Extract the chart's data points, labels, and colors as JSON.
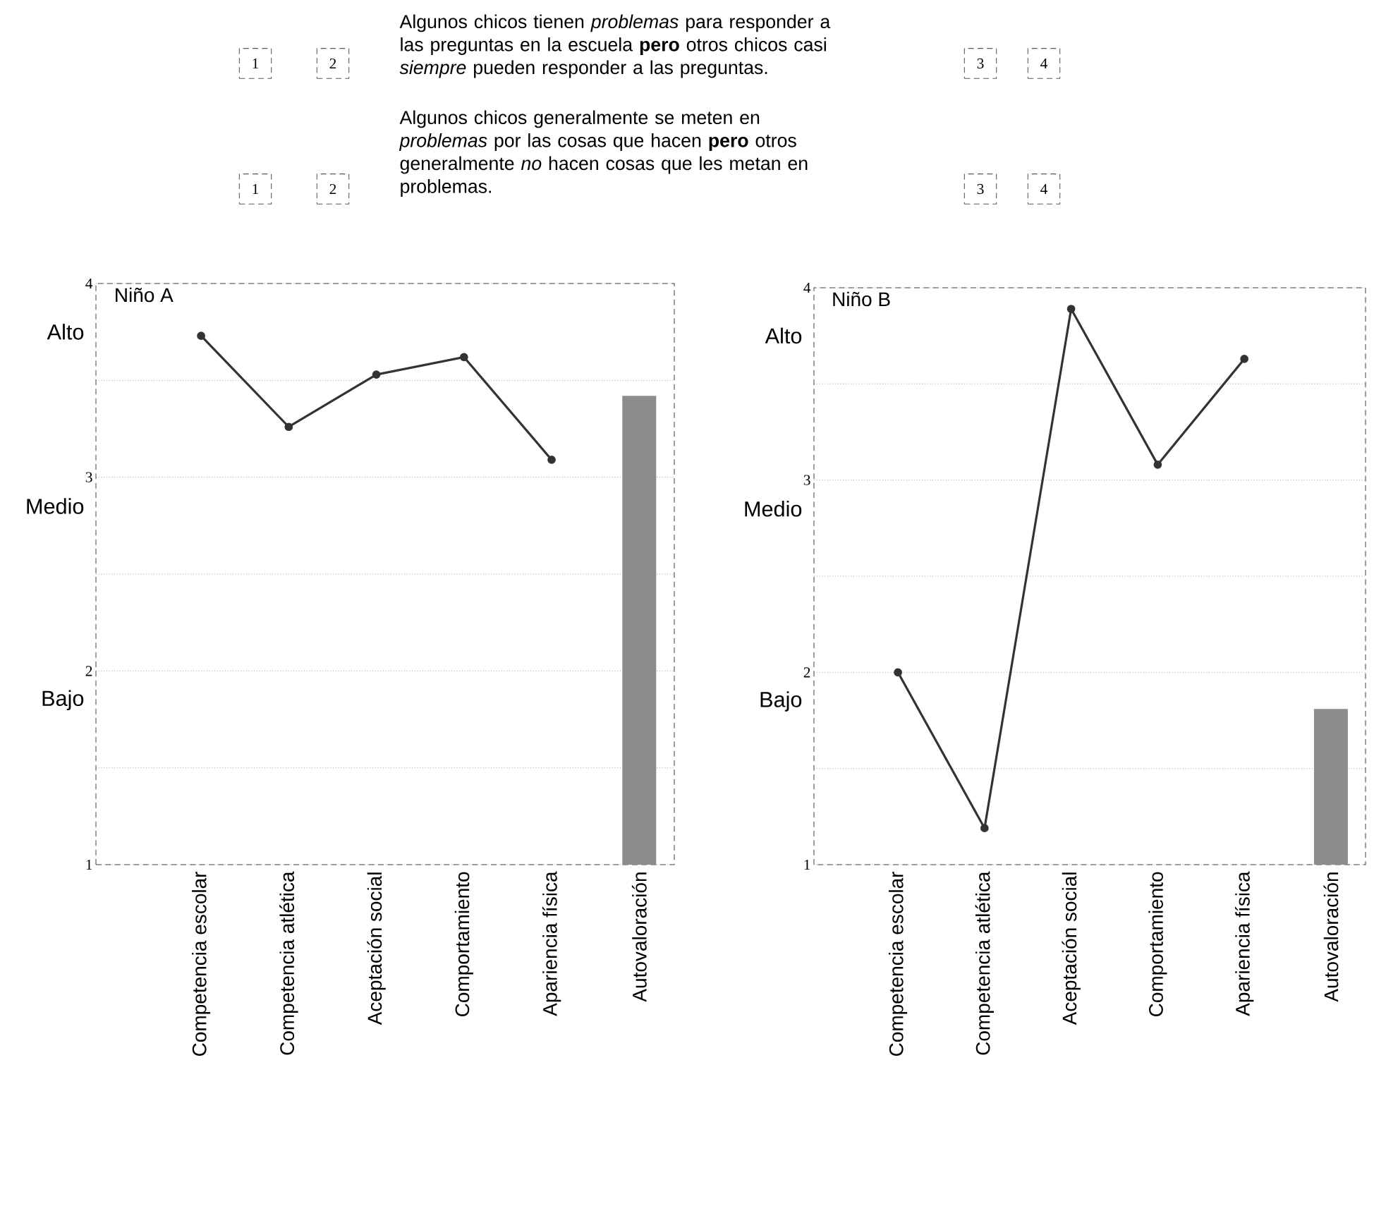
{
  "chart_data": [
    {
      "type": "other",
      "annotations": [
        "1",
        "2",
        "Algunos chicos tienen *problemas* para responder a las preguntas en la escuela **pero** otros chicos casi *siempre* pueden responder a las preguntas.",
        "3",
        "4",
        "1",
        "2",
        "Algunos chicos generalmente se meten en *problemas* por las cosas que hacen **pero** otros generalmente *no* hacen cosas que les metan en problemas.",
        "3",
        "4"
      ]
    },
    {
      "type": "line",
      "title": "Niño A",
      "categories": [
        "Competencia escolar",
        "Competencia atlética",
        "Aceptación social",
        "Comportamiento",
        "Apariencia física",
        "Autovaloración"
      ],
      "series": [
        {
          "type": "line",
          "color": "#333333",
          "values": [
            3.73,
            3.26,
            3.53,
            3.62,
            3.09,
            null
          ]
        },
        {
          "type": "bar",
          "color": "#8c8c8c",
          "values": [
            null,
            null,
            null,
            null,
            null,
            3.42
          ]
        }
      ],
      "ylim": [
        1,
        4
      ],
      "yticks": [
        1,
        {
          "value": 1.5,
          "label": null
        },
        2,
        {
          "value": 2.5,
          "label": null
        },
        3,
        {
          "value": 3.5,
          "label": null
        },
        4
      ],
      "annotations": [
        "Bajo",
        "Medio",
        "Alto"
      ],
      "grid": "y",
      "marker": "circle"
    },
    {
      "type": "line",
      "title": "Niño B",
      "categories": [
        "Competencia escolar",
        "Competencia atlética",
        "Aceptación social",
        "Comportamiento",
        "Apariencia física",
        "Autovaloración"
      ],
      "series": [
        {
          "type": "line",
          "color": "#333333",
          "values": [
            2.0,
            1.19,
            3.89,
            3.08,
            3.63,
            null
          ]
        },
        {
          "type": "bar",
          "color": "#8c8c8c",
          "values": [
            null,
            null,
            null,
            null,
            null,
            1.81
          ]
        }
      ],
      "ylim": [
        1,
        4
      ],
      "yticks": [
        1,
        {
          "value": 1.5,
          "label": null
        },
        2,
        {
          "value": 2.5,
          "label": null
        },
        3,
        {
          "value": 3.5,
          "label": null
        },
        4
      ],
      "annotations": [
        "Bajo",
        "Medio",
        "Alto"
      ],
      "grid": "y",
      "marker": "circle"
    }
  ]
}
